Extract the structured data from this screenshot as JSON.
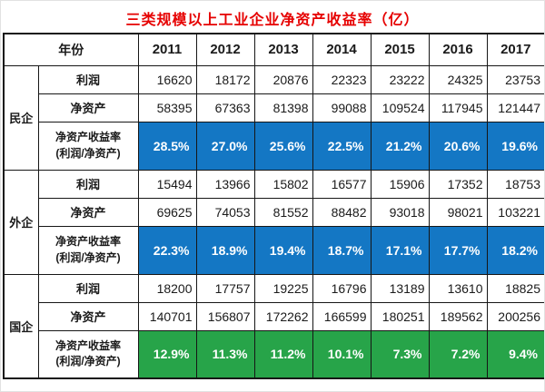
{
  "title": "三类规模以上工业企业净资产收益率（亿）",
  "colors": {
    "roe_blue": "#1477c4",
    "roe_green": "#27a449",
    "title_red": "#e60000",
    "border_black": "#161616"
  },
  "table": {
    "corner_label": "年份",
    "years": [
      "2011",
      "2012",
      "2013",
      "2014",
      "2015",
      "2016",
      "2017"
    ],
    "row_labels": {
      "profit": "利润",
      "net_assets": "净资产",
      "roe_line1": "净资产收益率",
      "roe_line2": "(利润/净资产)"
    },
    "groups": [
      {
        "name": "民企",
        "highlight": "#1477c4",
        "profit": [
          "16620",
          "18172",
          "20876",
          "22323",
          "23222",
          "24325",
          "23753"
        ],
        "net_assets": [
          "58395",
          "67363",
          "81398",
          "99088",
          "109524",
          "117945",
          "121447"
        ],
        "roe": [
          "28.5%",
          "27.0%",
          "25.6%",
          "22.5%",
          "21.2%",
          "20.6%",
          "19.6%"
        ]
      },
      {
        "name": "外企",
        "highlight": "#1477c4",
        "profit": [
          "15494",
          "13966",
          "15802",
          "16577",
          "15906",
          "17352",
          "18753"
        ],
        "net_assets": [
          "69625",
          "74053",
          "81552",
          "88482",
          "93018",
          "98021",
          "103221"
        ],
        "roe": [
          "22.3%",
          "18.9%",
          "19.4%",
          "18.7%",
          "17.1%",
          "17.7%",
          "18.2%"
        ]
      },
      {
        "name": "国企",
        "highlight": "#27a449",
        "profit": [
          "18200",
          "17757",
          "19225",
          "16796",
          "13189",
          "13610",
          "18825"
        ],
        "net_assets": [
          "140701",
          "156807",
          "172262",
          "166599",
          "180251",
          "189562",
          "200256"
        ],
        "roe": [
          "12.9%",
          "11.3%",
          "11.2%",
          "10.1%",
          "7.3%",
          "7.2%",
          "9.4%"
        ]
      }
    ]
  },
  "chart_data": {
    "type": "table",
    "title": "三类规模以上工业企业净资产收益率（亿）",
    "years": [
      2011,
      2012,
      2013,
      2014,
      2015,
      2016,
      2017
    ],
    "series": [
      {
        "group": "民企",
        "metric": "利润",
        "values": [
          16620,
          18172,
          20876,
          22323,
          23222,
          24325,
          23753
        ]
      },
      {
        "group": "民企",
        "metric": "净资产",
        "values": [
          58395,
          67363,
          81398,
          99088,
          109524,
          117945,
          121447
        ]
      },
      {
        "group": "民企",
        "metric": "净资产收益率(%)",
        "values": [
          28.5,
          27.0,
          25.6,
          22.5,
          21.2,
          20.6,
          19.6
        ]
      },
      {
        "group": "外企",
        "metric": "利润",
        "values": [
          15494,
          13966,
          15802,
          16577,
          15906,
          17352,
          18753
        ]
      },
      {
        "group": "外企",
        "metric": "净资产",
        "values": [
          69625,
          74053,
          81552,
          88482,
          93018,
          98021,
          103221
        ]
      },
      {
        "group": "外企",
        "metric": "净资产收益率(%)",
        "values": [
          22.3,
          18.9,
          19.4,
          18.7,
          17.1,
          17.7,
          18.2
        ]
      },
      {
        "group": "国企",
        "metric": "利润",
        "values": [
          18200,
          17757,
          19225,
          16796,
          13189,
          13610,
          18825
        ]
      },
      {
        "group": "国企",
        "metric": "净资产",
        "values": [
          140701,
          156807,
          172262,
          166599,
          180251,
          189562,
          200256
        ]
      },
      {
        "group": "国企",
        "metric": "净资产收益率(%)",
        "values": [
          12.9,
          11.3,
          11.2,
          10.1,
          7.3,
          7.2,
          9.4
        ]
      }
    ]
  }
}
